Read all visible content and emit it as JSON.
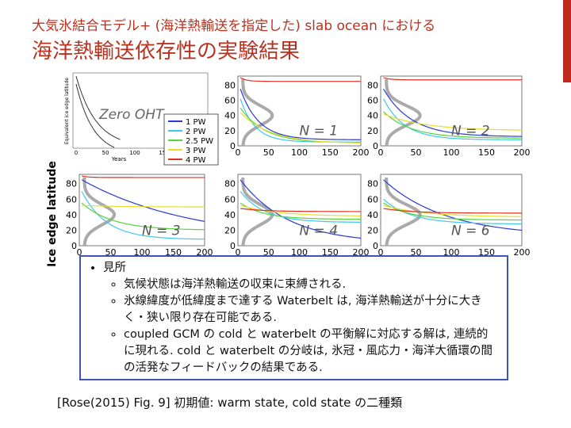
{
  "header": {
    "title_line1": "大気氷結合モデル+ (海洋熱輸送を指定した) slab ocean における",
    "title_line2": "海洋熱輸送依存性の実験結果"
  },
  "figure": {
    "y_axis_label": "Ice edge latitude",
    "inset": {
      "label": "Zero OHT",
      "x_label": "Years",
      "y_label": "Equivalent ice edge latitude",
      "xticks": [
        "0",
        "50",
        "100",
        "150"
      ]
    },
    "legend": [
      "1 PW",
      "2 PW",
      "2.5 PW",
      "3 PW",
      "4 PW"
    ],
    "panel_labels": [
      "N = 1",
      "N = 2",
      "N = 3",
      "N = 4",
      "N = 6"
    ],
    "xticks": [
      "0",
      "50",
      "100",
      "150",
      "200"
    ],
    "yticks": [
      "0",
      "20",
      "40",
      "60",
      "80"
    ]
  },
  "notes": {
    "heading": "見所",
    "items": [
      "気候状態は海洋熱輸送の収束に束縛される.",
      "氷線緯度が低緯度まで達する Waterbelt は, 海洋熱輸送が十分に大きく・狭い限り存在可能である.",
      "coupled GCM の cold と waterbelt の平衡解に対応する解は, 連続的に現れる. cold と waterbelt の分岐は, 氷冠・風応力・海洋大循環の間の活発なフィードバックの結果である."
    ]
  },
  "caption": "[Rose(2015) Fig. 9] 初期値: warm state, cold state の二種類"
}
